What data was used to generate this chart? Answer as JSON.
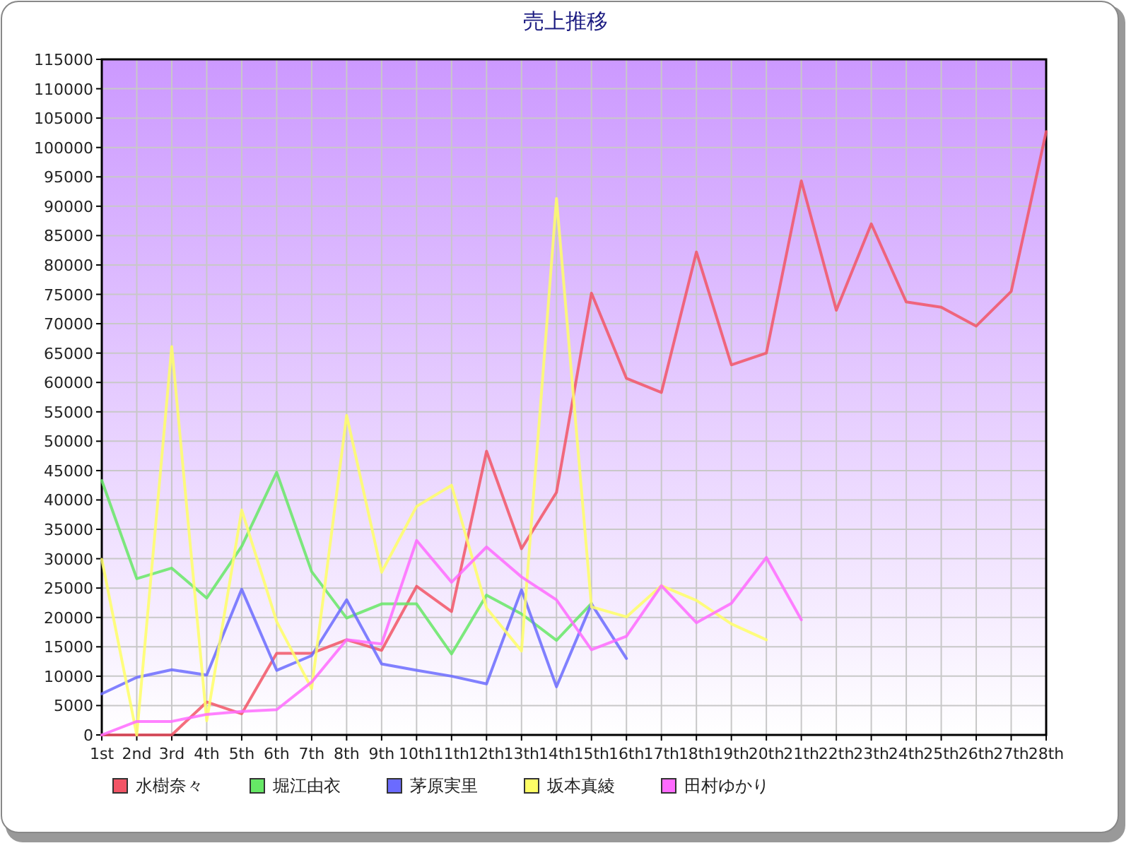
{
  "chart_data": {
    "type": "line",
    "title": "売上推移",
    "categories": [
      "1st",
      "2nd",
      "3rd",
      "4th",
      "5th",
      "6th",
      "7th",
      "8th",
      "9th",
      "10th",
      "11th",
      "12th",
      "13th",
      "14th",
      "15th",
      "16th",
      "17th",
      "18th",
      "19th",
      "20th",
      "21th",
      "22th",
      "23th",
      "24th",
      "25th",
      "26th",
      "27th",
      "28th"
    ],
    "series": [
      {
        "name": "水樹奈々",
        "color": "#f25566",
        "values": [
          0,
          0,
          0,
          5600,
          3600,
          13900,
          13900,
          16200,
          14400,
          25300,
          21000,
          48300,
          31700,
          41300,
          75200,
          60700,
          58300,
          82200,
          63000,
          65000,
          94300,
          72300,
          87000,
          73700,
          72800,
          69600,
          75500,
          102700
        ]
      },
      {
        "name": "堀江由衣",
        "color": "#66e866",
        "values": [
          43300,
          26600,
          28400,
          23300,
          32100,
          44700,
          27800,
          19900,
          22300,
          22300,
          13800,
          23800,
          20600,
          16100,
          22400,
          null,
          null,
          null,
          null,
          null,
          null,
          null,
          null,
          null,
          null,
          null,
          null,
          null
        ]
      },
      {
        "name": "茅原実里",
        "color": "#6b6bff",
        "values": [
          7000,
          9800,
          11100,
          10200,
          24800,
          11000,
          13500,
          23000,
          12100,
          11000,
          10000,
          8700,
          24700,
          8200,
          22300,
          13000,
          null,
          null,
          null,
          null,
          null,
          null,
          null,
          null,
          null,
          null,
          null,
          null
        ]
      },
      {
        "name": "坂本真綾",
        "color": "#ffff66",
        "values": [
          29900,
          0,
          66100,
          2400,
          38300,
          19300,
          7900,
          54400,
          27700,
          38900,
          42500,
          21600,
          14300,
          91300,
          21800,
          20100,
          25400,
          22900,
          18900,
          16200,
          null,
          null,
          null,
          null,
          null,
          null,
          null,
          null
        ]
      },
      {
        "name": "田村ゆかり",
        "color": "#ff6bff",
        "values": [
          0,
          2300,
          2300,
          3500,
          4000,
          4300,
          9000,
          16200,
          15500,
          33100,
          26000,
          32000,
          26900,
          23000,
          14500,
          16800,
          25400,
          19100,
          22400,
          30200,
          19600,
          null,
          null,
          null,
          null,
          null,
          null,
          null
        ]
      }
    ],
    "ylim": [
      0,
      115000
    ],
    "yticks": [
      0,
      5000,
      10000,
      15000,
      20000,
      25000,
      30000,
      35000,
      40000,
      45000,
      50000,
      55000,
      60000,
      65000,
      70000,
      75000,
      80000,
      85000,
      90000,
      95000,
      100000,
      105000,
      110000,
      115000
    ],
    "grid": true,
    "legend": "bottom",
    "marker": "none",
    "line_style": "solid"
  }
}
